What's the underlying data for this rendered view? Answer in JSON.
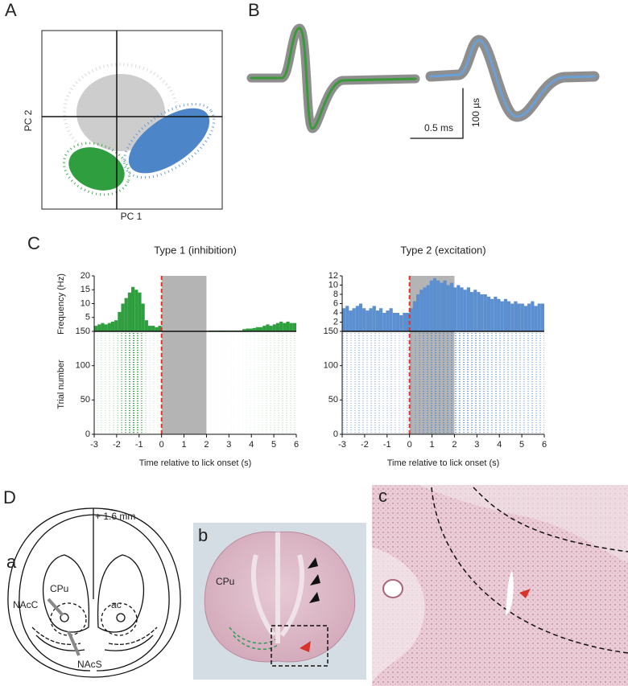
{
  "figure": {
    "panel_labels": [
      "A",
      "B",
      "C",
      "D"
    ],
    "pca": {
      "x_label": "PC 1",
      "y_label": "PC 2"
    },
    "scale_bar": {
      "time": "0.5 ms",
      "amplitude": "100 µs"
    },
    "histology": {
      "a": {
        "label": "a",
        "level": "+ 1.6 mm",
        "regions": [
          "CPu",
          "NAcC",
          "ac",
          "NAcS"
        ]
      },
      "b": {
        "label": "b",
        "region": "CPu"
      },
      "c": {
        "label": "c"
      }
    }
  },
  "chart_data": [
    {
      "type": "histogram",
      "title": "Type 1 (inhibition)",
      "color": "#2f9e3f",
      "xlabel": "Time relative to lick onset (s)",
      "ylabel": "Frequency (Hz)",
      "raster_ylabel": "Trial number",
      "bins": [
        -3,
        -2.85,
        -2.7,
        -2.55,
        -2.4,
        -2.25,
        -2.1,
        -1.95,
        -1.8,
        -1.65,
        -1.5,
        -1.35,
        -1.2,
        -1.05,
        -0.9,
        -0.75,
        -0.6,
        -0.45,
        -0.3,
        -0.15,
        0,
        0.15,
        0.3,
        0.45,
        0.6,
        0.75,
        0.9,
        1.05,
        1.2,
        1.35,
        1.5,
        1.65,
        1.8,
        1.95,
        2.1,
        2.25,
        2.4,
        2.55,
        2.7,
        2.85,
        3,
        3.15,
        3.3,
        3.45,
        3.6,
        3.75,
        3.9,
        4.05,
        4.2,
        4.35,
        4.5,
        4.65,
        4.8,
        4.95,
        5.1,
        5.25,
        5.4,
        5.55,
        5.7,
        5.85,
        6
      ],
      "values": [
        2,
        2.5,
        3,
        2.5,
        3,
        3.5,
        4,
        7,
        10,
        12,
        14,
        16,
        15,
        14,
        10,
        4,
        2,
        2,
        1.5,
        2,
        0,
        0,
        0,
        0,
        0,
        0,
        0,
        0,
        0,
        0,
        0,
        0,
        0,
        0,
        0.3,
        0.3,
        0.3,
        0.3,
        0.3,
        0.3,
        0.3,
        0.3,
        0.3,
        0.3,
        0.8,
        1,
        1,
        1.2,
        1.5,
        1.5,
        2,
        2.5,
        2,
        2.5,
        3,
        3.5,
        3,
        3.5,
        3,
        3
      ],
      "xlim": [
        -3,
        6
      ],
      "xticks": [
        -3,
        -2,
        -1,
        0,
        1,
        2,
        3,
        4,
        5,
        6
      ],
      "ylim": [
        0,
        20
      ],
      "yticks": [
        5,
        10,
        15,
        20
      ],
      "raster_ylim": [
        0,
        150
      ],
      "raster_yticks": [
        0,
        50,
        100,
        150
      ],
      "shade": [
        0,
        2
      ],
      "marker_x": 0
    },
    {
      "type": "histogram",
      "title": "Type 2 (excitation)",
      "color": "#5b8fcf",
      "xlabel": "Time relative to lick onset (s)",
      "bins": [
        -3,
        -2.85,
        -2.7,
        -2.55,
        -2.4,
        -2.25,
        -2.1,
        -1.95,
        -1.8,
        -1.65,
        -1.5,
        -1.35,
        -1.2,
        -1.05,
        -0.9,
        -0.75,
        -0.6,
        -0.45,
        -0.3,
        -0.15,
        0,
        0.15,
        0.3,
        0.45,
        0.6,
        0.75,
        0.9,
        1.05,
        1.2,
        1.35,
        1.5,
        1.65,
        1.8,
        1.95,
        2.1,
        2.25,
        2.4,
        2.55,
        2.7,
        2.85,
        3,
        3.15,
        3.3,
        3.45,
        3.6,
        3.75,
        3.9,
        4.05,
        4.2,
        4.35,
        4.5,
        4.65,
        4.8,
        4.95,
        5.1,
        5.25,
        5.4,
        5.55,
        5.7,
        5.85,
        6
      ],
      "values": [
        5,
        5.5,
        4.5,
        5,
        5.5,
        6,
        5,
        4.5,
        5,
        5.5,
        4.5,
        5,
        4,
        4.5,
        5,
        4,
        4,
        3.5,
        4,
        4,
        5,
        6.5,
        8,
        9,
        9.5,
        10,
        11,
        11.5,
        11,
        10.5,
        11,
        10,
        10.5,
        9.5,
        10,
        9.5,
        9,
        9.5,
        8.5,
        9,
        8.5,
        8,
        8,
        7.5,
        7,
        7.5,
        7,
        6.5,
        7,
        6.5,
        6,
        6.5,
        6,
        6,
        5.5,
        6,
        6.5,
        5.5,
        6,
        6
      ],
      "xlim": [
        -3,
        6
      ],
      "xticks": [
        -3,
        -2,
        -1,
        0,
        1,
        2,
        3,
        4,
        5,
        6
      ],
      "ylim": [
        0,
        12
      ],
      "yticks": [
        2,
        4,
        6,
        8,
        10,
        12
      ],
      "raster_ylim": [
        0,
        150
      ],
      "raster_yticks": [
        0,
        50,
        100,
        150
      ],
      "shade": [
        0,
        2
      ],
      "marker_x": 0
    }
  ]
}
